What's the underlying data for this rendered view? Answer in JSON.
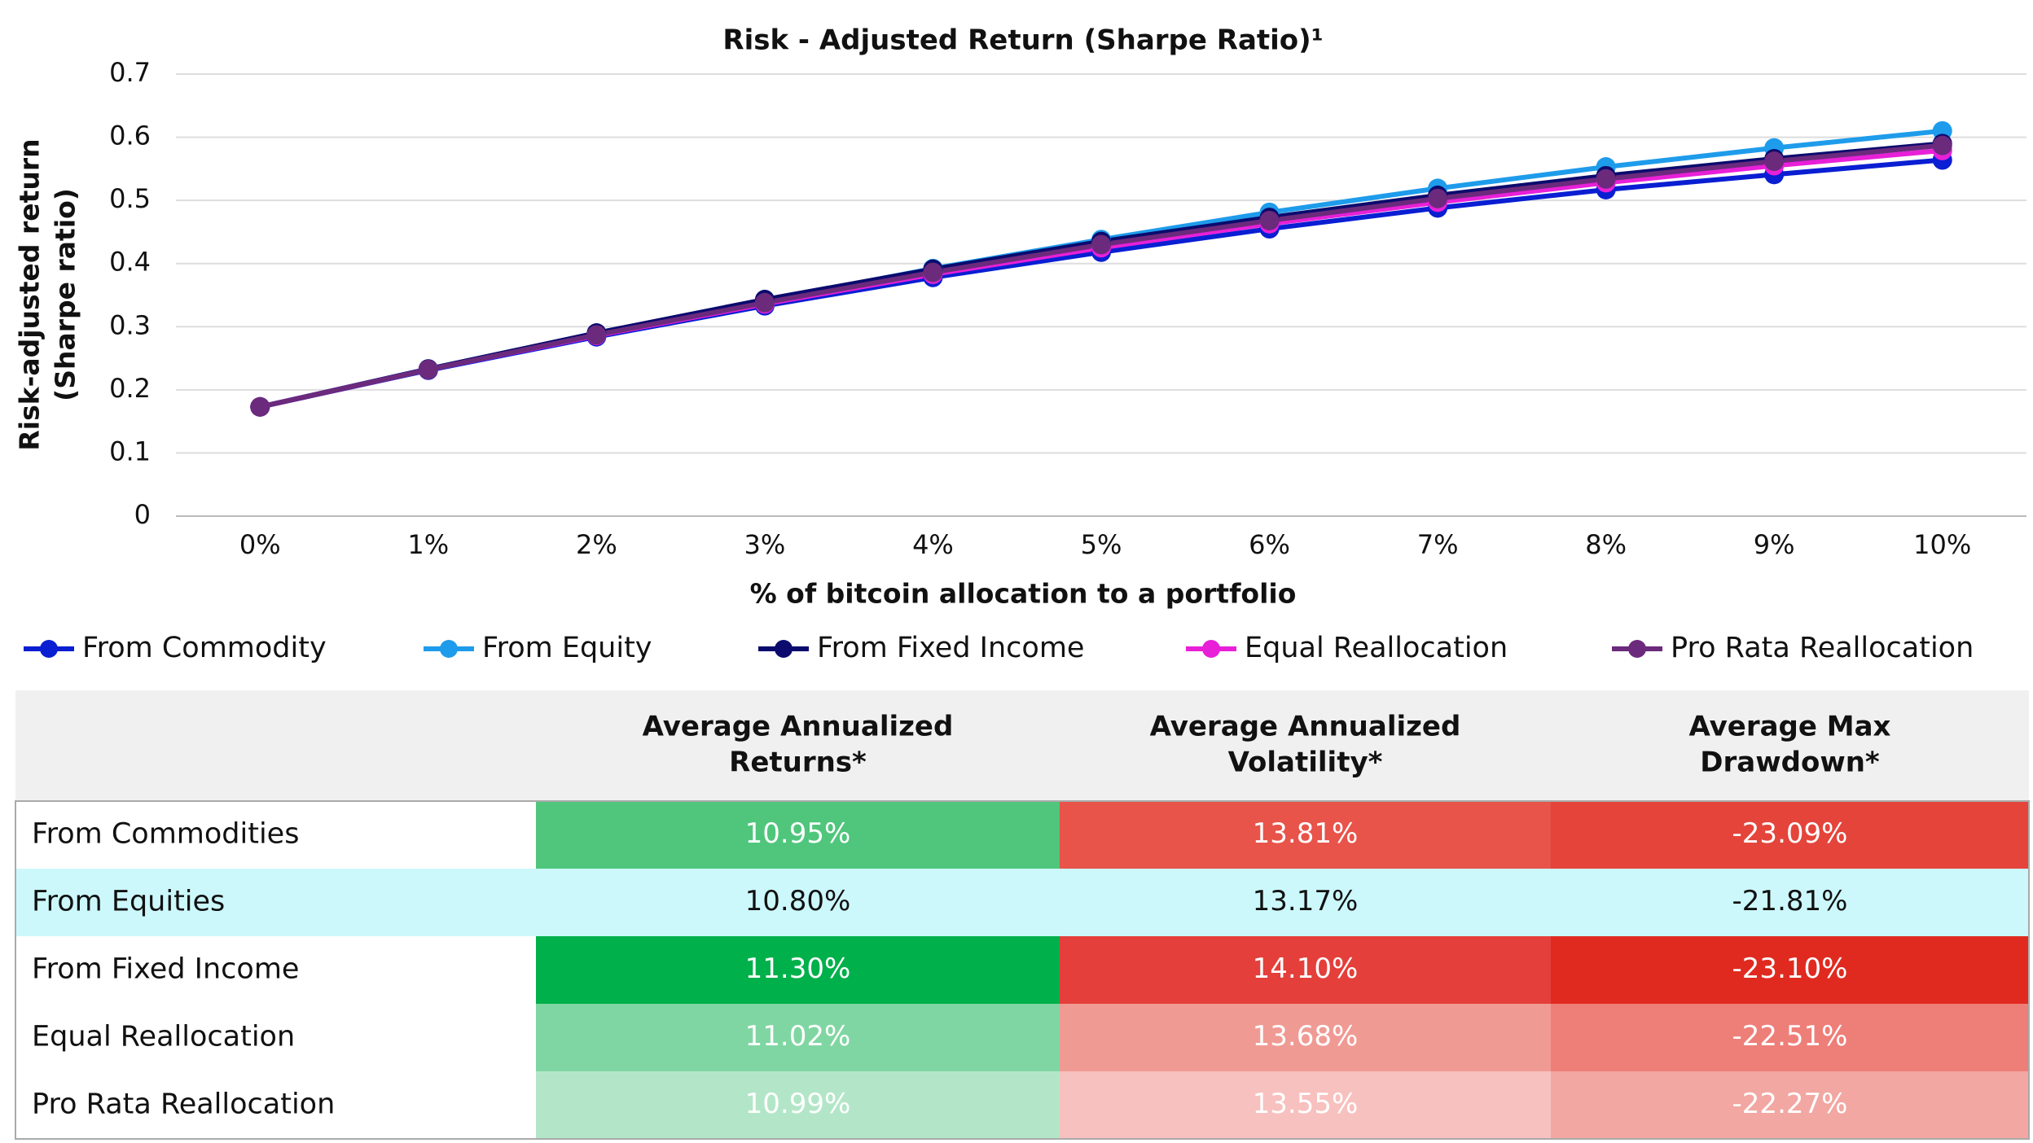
{
  "chart_data": {
    "type": "line",
    "title": "Risk - Adjusted Return (Sharpe Ratio)¹",
    "y_label": [
      "Risk-adjusted return",
      "(Sharpe ratio)"
    ],
    "x_label": "% of bitcoin allocation to a portfolio",
    "categories": [
      "0%",
      "1%",
      "2%",
      "3%",
      "4%",
      "5%",
      "6%",
      "7%",
      "8%",
      "9%",
      "10%"
    ],
    "ylim": [
      0,
      0.7
    ],
    "yticks": [
      0,
      0.1,
      0.2,
      0.3,
      0.4,
      0.5,
      0.6,
      0.7
    ],
    "grid": true,
    "legend": "bottom",
    "series": [
      {
        "name": "From Commodity",
        "color": "#0a1ed2",
        "values": [
          0.173,
          0.231,
          0.284,
          0.333,
          0.378,
          0.418,
          0.455,
          0.488,
          0.517,
          0.541,
          0.564
        ]
      },
      {
        "name": "From Equity",
        "color": "#1e9ceb",
        "values": [
          0.173,
          0.233,
          0.289,
          0.341,
          0.392,
          0.438,
          0.481,
          0.519,
          0.553,
          0.583,
          0.61
        ]
      },
      {
        "name": "From Fixed Income",
        "color": "#0b0b6e",
        "values": [
          0.173,
          0.233,
          0.29,
          0.343,
          0.391,
          0.435,
          0.473,
          0.508,
          0.539,
          0.566,
          0.59
        ]
      },
      {
        "name": "Equal Reallocation",
        "color": "#e820d8",
        "values": [
          0.173,
          0.232,
          0.286,
          0.336,
          0.383,
          0.425,
          0.463,
          0.497,
          0.528,
          0.555,
          0.579
        ]
      },
      {
        "name": "Pro Rata Reallocation",
        "color": "#6b2a7c",
        "values": [
          0.173,
          0.232,
          0.287,
          0.338,
          0.386,
          0.43,
          0.468,
          0.503,
          0.534,
          0.562,
          0.587
        ]
      }
    ]
  },
  "table": {
    "header": [
      [
        "Average Annualized",
        "Returns*"
      ],
      [
        "Average Annualized",
        "Volatility*"
      ],
      [
        "Average Max",
        "Drawdown*"
      ]
    ],
    "rows": [
      {
        "label": "From Commodities",
        "cells": [
          "10.95%",
          "13.81%",
          "-23.09%"
        ],
        "label_fill": "#ffffff",
        "fills": [
          "#4fc67c",
          "#e8534a",
          "#e5443b"
        ],
        "text_color": "#ffffff"
      },
      {
        "label": "From Equities",
        "cells": [
          "10.80%",
          "13.17%",
          "-21.81%"
        ],
        "label_fill": "#ccf8fc",
        "fills": [
          "#ccf8fc",
          "#ccf8fc",
          "#ccf8fc"
        ],
        "text_color": "#111111"
      },
      {
        "label": "From Fixed Income",
        "cells": [
          "11.30%",
          "14.10%",
          "-23.10%"
        ],
        "label_fill": "#ffffff",
        "fills": [
          "#00b04a",
          "#e43f3a",
          "#e02a20"
        ],
        "text_color": "#ffffff"
      },
      {
        "label": "Equal Reallocation",
        "cells": [
          "11.02%",
          "13.68%",
          "-22.51%"
        ],
        "label_fill": "#ffffff",
        "fills": [
          "#80d6a2",
          "#f09a94",
          "#ee7e78"
        ],
        "text_color": "#ffffff"
      },
      {
        "label": "Pro Rata Reallocation",
        "cells": [
          "10.99%",
          "13.55%",
          "-22.27%"
        ],
        "label_fill": "#ffffff",
        "fills": [
          "#b3e6c8",
          "#f7c1bf",
          "#f2a7a2"
        ],
        "text_color": "#ffffff"
      }
    ]
  }
}
